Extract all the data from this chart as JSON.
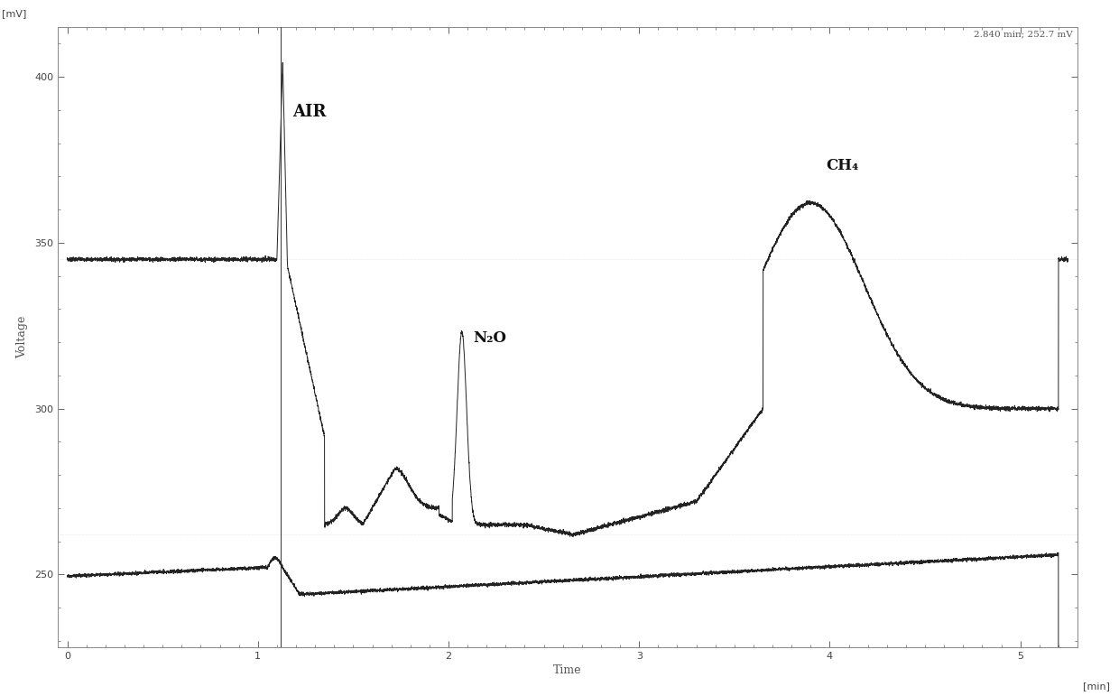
{
  "title_annotation": "2.840 min; 252.7 mV",
  "ylabel": "Voltage",
  "xlabel": "Time",
  "xunit": "[min]",
  "yunit": "[mV]",
  "xlim": [
    -0.05,
    5.3
  ],
  "ylim": [
    228,
    415
  ],
  "yticks": [
    250,
    300,
    350,
    400
  ],
  "xticks": [
    0,
    1,
    2,
    3,
    4,
    5
  ],
  "air_line_x": 1.12,
  "air_label": "AIR",
  "n2o_label": "N₂O",
  "ch4_label": "CH₄",
  "background_color": "#ffffff",
  "line_color": "#222222",
  "grid_color": "#aaaaaa"
}
